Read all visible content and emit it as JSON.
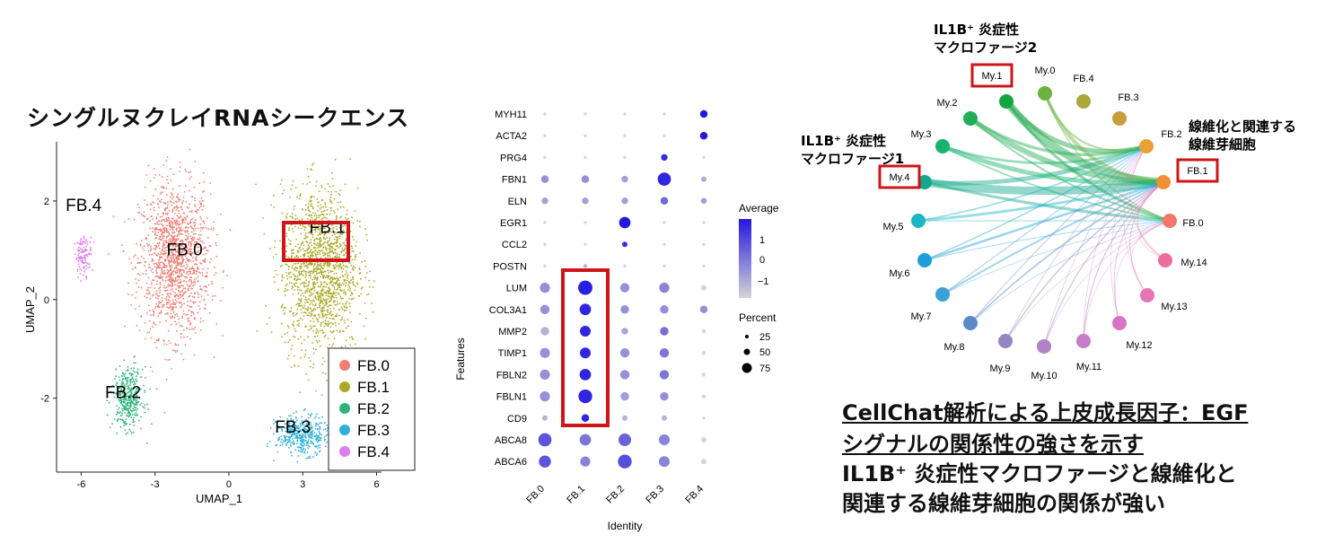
{
  "umap": {
    "title": "シングルヌクレイRNAシークエンス",
    "xlabel": "UMAP_1",
    "ylabel": "UMAP_2",
    "xticks": [
      "-6",
      "-3",
      "0",
      "3",
      "6"
    ],
    "yticks": [
      "2",
      "0",
      "-2"
    ],
    "legend": [
      "FB.0",
      "FB.1",
      "FB.2",
      "FB.3",
      "FB.4"
    ],
    "cluster_labels": [
      "FB.0",
      "FB.1",
      "FB.2",
      "FB.3",
      "FB.4"
    ],
    "highlighted": "FB.1"
  },
  "chart_data": [
    {
      "type": "scatter",
      "title": "シングルヌクレイRNAシークエンス",
      "xlabel": "UMAP_1",
      "ylabel": "UMAP_2",
      "xlim": [
        -7,
        6.2
      ],
      "ylim": [
        -3.5,
        3.2
      ],
      "series": [
        {
          "name": "FB.0",
          "color": "#F07E74",
          "center": [
            -2.2,
            0.8
          ],
          "spread": [
            1.3,
            1.4
          ]
        },
        {
          "name": "FB.1",
          "color": "#ABA923",
          "center": [
            3.7,
            0.6
          ],
          "spread": [
            1.4,
            1.5
          ]
        },
        {
          "name": "FB.2",
          "color": "#2DB47B",
          "center": [
            -4.1,
            -2.0
          ],
          "spread": [
            0.55,
            0.55
          ]
        },
        {
          "name": "FB.3",
          "color": "#2EAFDB",
          "center": [
            3.0,
            -2.75
          ],
          "spread": [
            0.95,
            0.35
          ]
        },
        {
          "name": "FB.4",
          "color": "#E17CF0",
          "center": [
            -5.9,
            0.9
          ],
          "spread": [
            0.3,
            0.35
          ]
        }
      ],
      "legend": "bottom-right",
      "grid": false
    },
    {
      "type": "dotplot",
      "xlabel": "Identity",
      "ylabel": "Features",
      "x": [
        "FB.0",
        "FB.1",
        "FB.2",
        "FB.3",
        "FB.4"
      ],
      "features": [
        "MYH11",
        "ACTA2",
        "PRG4",
        "FBN1",
        "ELN",
        "EGR1",
        "CCL2",
        "POSTN",
        "LUM",
        "COL3A1",
        "MMP2",
        "TIMP1",
        "FBLN2",
        "FBLN1",
        "CD9",
        "ABCA8",
        "ABCA6"
      ],
      "average": [
        [
          -1.0,
          -1.0,
          -1.0,
          -1.0,
          1.8
        ],
        [
          -1.0,
          -1.0,
          -1.0,
          -1.0,
          1.8
        ],
        [
          -1.0,
          -1.0,
          -1.0,
          1.5,
          -1.0
        ],
        [
          0.0,
          0.0,
          -0.2,
          1.6,
          -0.4
        ],
        [
          -0.2,
          -0.2,
          -0.2,
          0.6,
          -0.2
        ],
        [
          -1.0,
          -1.0,
          1.8,
          -1.0,
          -1.0
        ],
        [
          -1.0,
          -1.0,
          1.5,
          -1.0,
          -1.0
        ],
        [
          -1.0,
          -0.5,
          -1.0,
          -1.0,
          -1.0
        ],
        [
          0.0,
          1.7,
          0.0,
          0.2,
          -1.0
        ],
        [
          0.0,
          1.6,
          0.0,
          0.0,
          0.0
        ],
        [
          -0.5,
          1.6,
          -0.3,
          0.5,
          -1.0
        ],
        [
          0.0,
          1.6,
          0.0,
          0.4,
          -1.0
        ],
        [
          0.0,
          1.6,
          0.0,
          0.4,
          -1.0
        ],
        [
          0.0,
          1.6,
          -0.2,
          0.0,
          -1.0
        ],
        [
          -0.5,
          1.6,
          -0.5,
          -0.5,
          -1.0
        ],
        [
          0.9,
          0.4,
          0.7,
          0.2,
          -1.0
        ],
        [
          0.9,
          0.2,
          1.0,
          0.2,
          -1.0
        ]
      ],
      "percent": [
        [
          3,
          3,
          3,
          3,
          20
        ],
        [
          3,
          3,
          3,
          3,
          20
        ],
        [
          3,
          3,
          3,
          15,
          3
        ],
        [
          20,
          20,
          15,
          60,
          10
        ],
        [
          15,
          15,
          15,
          20,
          12
        ],
        [
          3,
          3,
          45,
          3,
          3
        ],
        [
          3,
          3,
          10,
          3,
          3
        ],
        [
          3,
          5,
          3,
          3,
          3
        ],
        [
          35,
          70,
          30,
          35,
          10
        ],
        [
          30,
          45,
          25,
          25,
          20
        ],
        [
          25,
          40,
          15,
          25,
          5
        ],
        [
          35,
          40,
          30,
          30,
          5
        ],
        [
          35,
          45,
          30,
          30,
          5
        ],
        [
          35,
          65,
          25,
          25,
          5
        ],
        [
          10,
          20,
          10,
          10,
          3
        ],
        [
          60,
          45,
          55,
          40,
          10
        ],
        [
          50,
          35,
          65,
          40,
          10
        ]
      ],
      "highlighted_column": "FB.1",
      "highlighted_rows": [
        "LUM",
        "CD9"
      ],
      "color_legend_title": "Average",
      "color_ticks": [
        "1",
        "0",
        "−1"
      ],
      "size_legend_title": "Percent",
      "size_ticks": [
        "25",
        "50",
        "75"
      ]
    },
    {
      "type": "network",
      "nodes": [
        {
          "id": "My.1",
          "color": "#13A443",
          "highlighted": true
        },
        {
          "id": "My.0",
          "color": "#6DB23F"
        },
        {
          "id": "FB.4",
          "color": "#A9A838"
        },
        {
          "id": "FB.3",
          "color": "#C99D39"
        },
        {
          "id": "FB.2",
          "color": "#EAA035"
        },
        {
          "id": "FB.1",
          "color": "#F28E38",
          "highlighted": true
        },
        {
          "id": "FB.0",
          "color": "#F0776A"
        },
        {
          "id": "My.14",
          "color": "#EE6D9F"
        },
        {
          "id": "My.13",
          "color": "#E874B6"
        },
        {
          "id": "My.12",
          "color": "#DA73C5"
        },
        {
          "id": "My.11",
          "color": "#C77BCB"
        },
        {
          "id": "My.10",
          "color": "#B182C6"
        },
        {
          "id": "My.9",
          "color": "#9487C1"
        },
        {
          "id": "My.8",
          "color": "#5C8AC8"
        },
        {
          "id": "My.7",
          "color": "#3BA2D6"
        },
        {
          "id": "My.6",
          "color": "#1E9FD9"
        },
        {
          "id": "My.5",
          "color": "#1DB7C3"
        },
        {
          "id": "My.4",
          "color": "#12A88A",
          "highlighted": true
        },
        {
          "id": "My.3",
          "color": "#17B46E"
        },
        {
          "id": "My.2",
          "color": "#23AD55"
        }
      ],
      "annotations": [
        {
          "line1": "IL1B⁺ 炎症性",
          "line2": "マクロファージ2",
          "target": "My.1"
        },
        {
          "line1": "IL1B⁺ 炎症性",
          "line2": "マクロファージ1",
          "target": "My.4"
        },
        {
          "line1": "線維化と関連する",
          "line2": "線維芽細胞",
          "target": "FB.1"
        }
      ]
    }
  ],
  "cellchat_text": {
    "title_line1": "CellChat解析による上皮成長因子：EGF",
    "title_line2": "シグナルの関係性の強さを示す",
    "conclusion_line1": "IL1B⁺ 炎症性マクロファージと線維化と",
    "conclusion_line2": "関連する線維芽細胞の関係が強い"
  },
  "colors": {
    "highlight_box": "#D0141A",
    "dot_low": "#D4D4D4",
    "dot_high": "#2418E0"
  }
}
